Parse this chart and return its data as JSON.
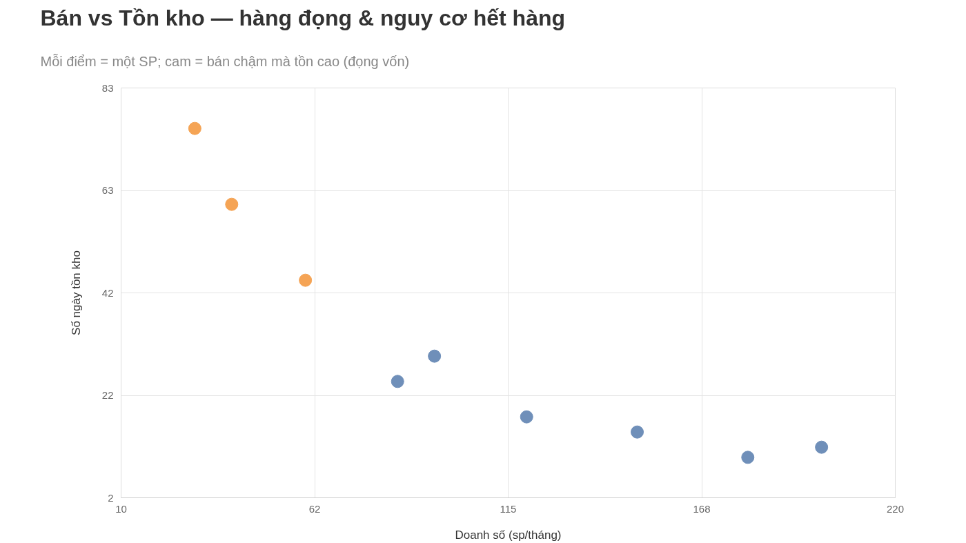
{
  "chart_data": {
    "type": "scatter",
    "title": "Bán vs Tồn kho — hàng đọng & nguy cơ hết hàng",
    "subtitle": "Mỗi điểm = một SP; cam = bán chậm mà tồn cao (đọng vốn)",
    "xlabel": "Doanh số (sp/tháng)",
    "ylabel": "Số ngày tồn kho",
    "series": [
      {
        "color": "#f5a455",
        "x": [
          30,
          40,
          60
        ],
        "values": [
          75,
          60,
          45
        ]
      },
      {
        "color": "#6f8fb9",
        "x": [
          85,
          95,
          120,
          150,
          180,
          200
        ],
        "values": [
          25,
          30,
          18,
          15,
          10,
          12
        ]
      }
    ],
    "xlim": [
      10,
      220
    ],
    "xticks": [
      10,
      {
        "value": 62.5,
        "label": "62"
      },
      115,
      {
        "value": 167.5,
        "label": "168"
      },
      220
    ],
    "ylim": [
      2,
      83
    ],
    "yticks": [
      2,
      {
        "value": 22.25,
        "label": "22"
      },
      {
        "value": 42.5,
        "label": "42"
      },
      {
        "value": 62.75,
        "label": "63"
      },
      83
    ],
    "grid": true,
    "marker": "circle"
  }
}
